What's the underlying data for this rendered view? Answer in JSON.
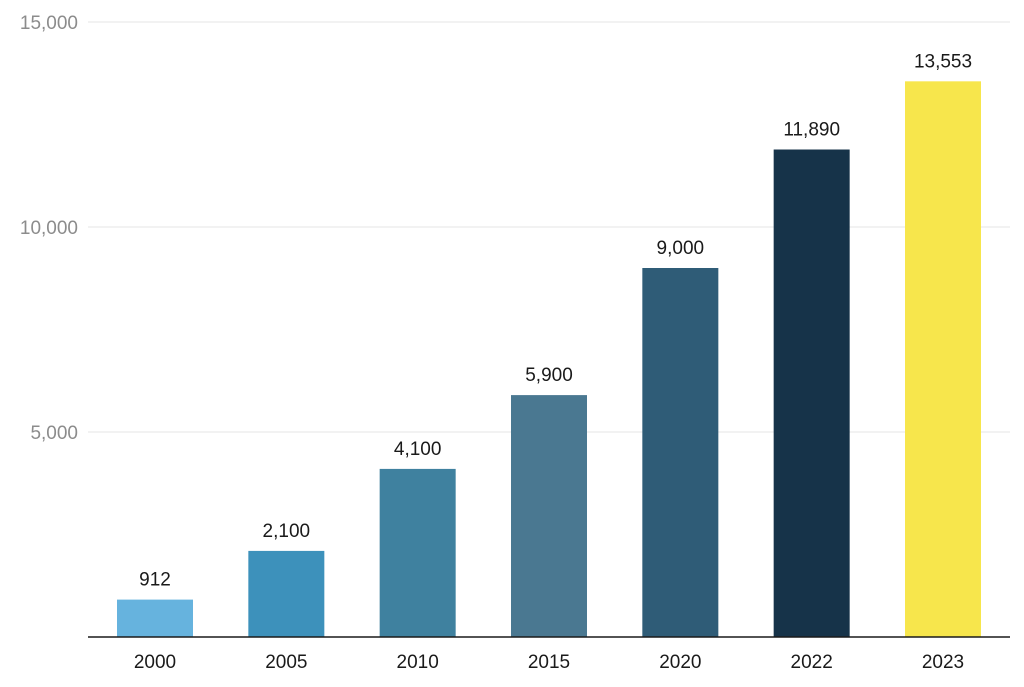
{
  "chart_data": {
    "type": "bar",
    "categories": [
      "2000",
      "2005",
      "2010",
      "2015",
      "2020",
      "2022",
      "2023"
    ],
    "values": [
      912,
      2100,
      4100,
      5900,
      9000,
      11890,
      13553
    ],
    "value_labels": [
      "912",
      "2,100",
      "4,100",
      "5,900",
      "9,000",
      "11,890",
      "13,553"
    ],
    "bar_colors": [
      "#66b3de",
      "#3d91bb",
      "#3f819f",
      "#4a7891",
      "#2f5c77",
      "#163349",
      "#f7e64c"
    ],
    "ylim": [
      0,
      15000
    ],
    "yticks": [
      5000,
      10000,
      15000
    ],
    "ytick_labels": [
      "5,000",
      "10,000",
      "15,000"
    ],
    "grid": true,
    "title": "",
    "xlabel": "",
    "ylabel": ""
  }
}
